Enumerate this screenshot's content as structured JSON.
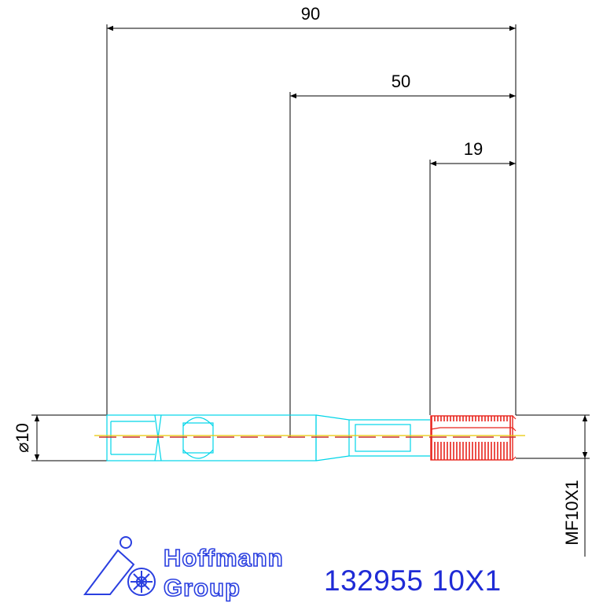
{
  "dimensions": {
    "overall_length": "90",
    "shank_length": "50",
    "thread_length": "19",
    "diameter": "⌀10",
    "thread_spec": "MF10X1"
  },
  "brand": {
    "line1": "Hoffmann",
    "line2": "Group"
  },
  "product": {
    "label": "132955 10X1"
  },
  "colors": {
    "dimension_lines": "#000000",
    "tool_outline": "#00d5e8",
    "thread": "#e8241c",
    "centerline": "#e8c800",
    "brand": "#1f2bd6"
  },
  "icons": {
    "logo": "hoffmann-group-logo"
  }
}
